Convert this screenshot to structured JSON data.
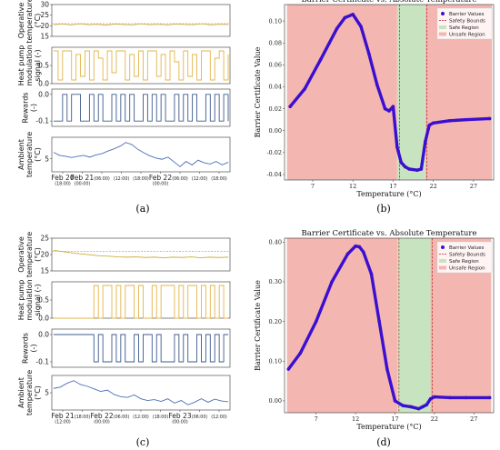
{
  "panel_labels": [
    "(a)",
    "(b)",
    "(c)",
    "(d)"
  ],
  "colors": {
    "operative": "#c9b13a",
    "operative_limit": "#e05050",
    "modulation": "#e3b54a",
    "rewards": "#3d5a8c",
    "ambient": "#4a6fb5",
    "barrier": "#3a0fd0",
    "unsafe_region": "#f4b6b0",
    "safe_region": "#c8e3c0",
    "safety_bound": "#b02020"
  },
  "chart_data": [
    {
      "id": "a",
      "type": "line",
      "subplots": [
        {
          "ylabel": "Operative temperature (°C)",
          "ylim": [
            15,
            30
          ],
          "yticks": [
            "15",
            "20",
            "25",
            "30"
          ],
          "limits": [
            21
          ],
          "values": [
            20.5,
            20.8,
            20.4,
            20.9,
            20.5,
            20.7,
            20.3,
            20.8,
            20.6,
            20.4,
            20.9,
            20.5,
            20.7,
            20.4,
            20.8,
            20.6,
            20.5,
            20.9,
            20.4,
            20.7,
            20.6
          ]
        },
        {
          "ylabel": "Heat pump modulation signal (-)",
          "ylim": [
            0,
            1
          ],
          "yticks": [
            "0.0",
            "0.5"
          ],
          "values": [
            0.9,
            0.1,
            0.9,
            0.9,
            0.1,
            0.8,
            0.2,
            0.9,
            0.1,
            0.9,
            0.7,
            0.1,
            0.9,
            0.3,
            0.9,
            0.9,
            0.1,
            0.8,
            0.2,
            0.9,
            0.1,
            0.9,
            0.9,
            0.2,
            0.8,
            0.1,
            0.9,
            0.6,
            0.1,
            0.9,
            0.2,
            0.8,
            0.1,
            0.9,
            0.9,
            0.1,
            0.7,
            0.9,
            0.1,
            0.8
          ]
        },
        {
          "ylabel": "Rewards (-)",
          "ylim": [
            -0.12,
            0.02
          ],
          "yticks": [
            "0.0",
            "-0.1"
          ],
          "values": [
            -0.1,
            -0.1,
            0,
            -0.1,
            0,
            0,
            -0.1,
            -0.1,
            0,
            -0.1,
            0,
            -0.1,
            -0.1,
            0,
            -0.1,
            0,
            -0.1,
            0,
            -0.1,
            -0.1,
            0,
            -0.1,
            0,
            -0.1,
            0,
            -0.1,
            -0.1,
            0,
            -0.1,
            0,
            -0.1,
            0,
            -0.1,
            -0.1,
            0,
            -0.1,
            0,
            -0.1,
            0,
            -0.1
          ]
        },
        {
          "ylabel": "Ambient temperature (°C)",
          "ylim": [
            2,
            10
          ],
          "yticks": [
            "5"
          ],
          "values": [
            6.5,
            5.8,
            5.6,
            5.3,
            5.6,
            5.8,
            5.4,
            5.9,
            6.2,
            6.8,
            7.3,
            7.9,
            8.8,
            8.3,
            7.2,
            6.4,
            5.7,
            5.2,
            4.9,
            5.4,
            4.3,
            3.2,
            4.4,
            3.6,
            4.7,
            4.1,
            3.8,
            4.4,
            3.6,
            4.2
          ]
        }
      ],
      "xticks": [
        {
          "label": "Feb 20",
          "sub": "(18:00)"
        },
        {
          "label": "Feb 21",
          "sub": "(00:00)"
        },
        {
          "label": "",
          "sub": "(06:00)"
        },
        {
          "label": "",
          "sub": "(12:00)"
        },
        {
          "label": "",
          "sub": "(18:00)"
        },
        {
          "label": "Feb 22",
          "sub": "(00:00)"
        },
        {
          "label": "",
          "sub": "(06:00)"
        },
        {
          "label": "",
          "sub": "(12:00)"
        },
        {
          "label": "",
          "sub": "(18:00)"
        }
      ]
    },
    {
      "id": "b",
      "type": "scatter",
      "title": "Barrier Certificate vs. Absolute Temperature",
      "xlabel": "Temperature (°C)",
      "ylabel": "Barrier Certificate Value",
      "xlim": [
        3.5,
        29.5
      ],
      "ylim": [
        -0.045,
        0.115
      ],
      "xticks": [
        7,
        12,
        17,
        22,
        27
      ],
      "yticks": [
        -0.04,
        -0.02,
        0.0,
        0.02,
        0.04,
        0.06,
        0.08,
        0.1
      ],
      "safe_region": [
        17.5,
        21.0
      ],
      "unsafe_regions": [
        [
          3.8,
          17.5
        ],
        [
          21.0,
          29.3
        ]
      ],
      "safety_bounds": [
        17.8,
        21.2
      ],
      "legend_loc": "top-right",
      "legend": [
        "Barrier Values",
        "Safety Bounds",
        "Safe Region",
        "Unsafe Region"
      ],
      "series": [
        {
          "name": "Barrier Values",
          "x": [
            4.2,
            6,
            8,
            10,
            11,
            12,
            13,
            14,
            15,
            16,
            16.5,
            17,
            17.5,
            18,
            18.5,
            19,
            20,
            20.5,
            21,
            21.5,
            22,
            24,
            26,
            29
          ],
          "y": [
            0.022,
            0.038,
            0.065,
            0.093,
            0.103,
            0.106,
            0.095,
            0.07,
            0.042,
            0.02,
            0.018,
            0.022,
            -0.015,
            -0.029,
            -0.033,
            -0.035,
            -0.036,
            -0.035,
            -0.01,
            0.005,
            0.007,
            0.009,
            0.01,
            0.011
          ]
        }
      ]
    },
    {
      "id": "c",
      "type": "line",
      "subplots": [
        {
          "ylabel": "Operative temperature (°C)",
          "ylim": [
            15,
            25
          ],
          "yticks": [
            "15",
            "20",
            "25"
          ],
          "limits": [
            21
          ],
          "values": [
            21.3,
            20.9,
            20.5,
            20.2,
            19.9,
            19.6,
            19.5,
            19.3,
            19.2,
            19.3,
            19.1,
            19.2,
            19.0,
            19.2,
            19.1,
            19.3,
            19.0,
            19.2,
            19.1,
            19.2
          ]
        },
        {
          "ylabel": "Heat pump modulation signal (-)",
          "ylim": [
            0,
            1
          ],
          "yticks": [
            "0.0",
            "0.5"
          ],
          "values": [
            0,
            0,
            0,
            0,
            0,
            0,
            0,
            0,
            0,
            0.9,
            0,
            0.9,
            0.9,
            0,
            0.9,
            0,
            0.9,
            0.9,
            0,
            0.9,
            0,
            0,
            0.9,
            0,
            0.9,
            0.9,
            0.9,
            0,
            0.9,
            0,
            0.9,
            0.9,
            0,
            0.9,
            0,
            0.9,
            0,
            0.9,
            0,
            0
          ]
        },
        {
          "ylabel": "Rewards (-)",
          "ylim": [
            -0.12,
            0.02
          ],
          "yticks": [
            "0.0",
            "-0.1"
          ],
          "values": [
            0,
            0,
            0,
            0,
            0,
            0,
            0,
            0,
            0,
            -0.1,
            0,
            -0.1,
            -0.1,
            0,
            -0.1,
            0,
            -0.1,
            -0.1,
            0,
            -0.1,
            0,
            0,
            -0.1,
            0,
            -0.1,
            -0.1,
            -0.1,
            0,
            -0.1,
            0,
            -0.1,
            -0.1,
            0,
            -0.1,
            0,
            -0.1,
            0,
            -0.1,
            0,
            0
          ]
        },
        {
          "ylabel": "Ambient temperature (°C)",
          "ylim": [
            1,
            9
          ],
          "yticks": [
            "5"
          ],
          "values": [
            6.0,
            6.3,
            7.2,
            7.8,
            6.9,
            6.5,
            5.9,
            5.3,
            5.6,
            4.6,
            4.1,
            3.9,
            4.5,
            3.6,
            3.2,
            3.4,
            3.0,
            3.6,
            2.6,
            3.2,
            2.2,
            2.8,
            3.6,
            2.8,
            3.5,
            3.1,
            2.9
          ]
        }
      ],
      "xticks": [
        {
          "label": "Feb 21",
          "sub": "(12:00)"
        },
        {
          "label": "",
          "sub": "(18:00)"
        },
        {
          "label": "Feb 22",
          "sub": "(00:00)"
        },
        {
          "label": "",
          "sub": "(06:00)"
        },
        {
          "label": "",
          "sub": "(12:00)"
        },
        {
          "label": "",
          "sub": "(18:00)"
        },
        {
          "label": "Feb 23",
          "sub": "(00:00)"
        },
        {
          "label": "",
          "sub": "(06:00)"
        },
        {
          "label": "",
          "sub": "(12:00)"
        }
      ]
    },
    {
      "id": "d",
      "type": "scatter",
      "title": "Barrier Certificate vs. Absolute Temperature",
      "xlabel": "Temperature (°C)",
      "ylabel": "Barrier Certificate Value",
      "xlim": [
        3.0,
        29.5
      ],
      "ylim": [
        -0.03,
        0.41
      ],
      "xticks": [
        7,
        12,
        17,
        22,
        27
      ],
      "yticks": [
        0.0,
        0.1,
        0.2,
        0.3,
        0.4
      ],
      "safe_region": [
        17.3,
        21.5
      ],
      "unsafe_regions": [
        [
          3.3,
          17.3
        ],
        [
          21.5,
          29.2
        ]
      ],
      "safety_bounds": [
        17.5,
        21.7
      ],
      "legend_loc": "top-right",
      "legend": [
        "Barrier Values",
        "Safety Bounds",
        "Safe Region",
        "Unsafe Region"
      ],
      "series": [
        {
          "name": "Barrier Values",
          "x": [
            3.5,
            5,
            7,
            9,
            11,
            12,
            12.5,
            13,
            14,
            15,
            16,
            17,
            18,
            19,
            20,
            20.5,
            21,
            21.5,
            22,
            24,
            26,
            29
          ],
          "y": [
            0.08,
            0.12,
            0.2,
            0.3,
            0.37,
            0.39,
            0.388,
            0.375,
            0.32,
            0.2,
            0.08,
            0.0,
            -0.012,
            -0.015,
            -0.02,
            -0.015,
            -0.01,
            0.005,
            0.01,
            0.008,
            0.008,
            0.008
          ]
        }
      ]
    }
  ]
}
